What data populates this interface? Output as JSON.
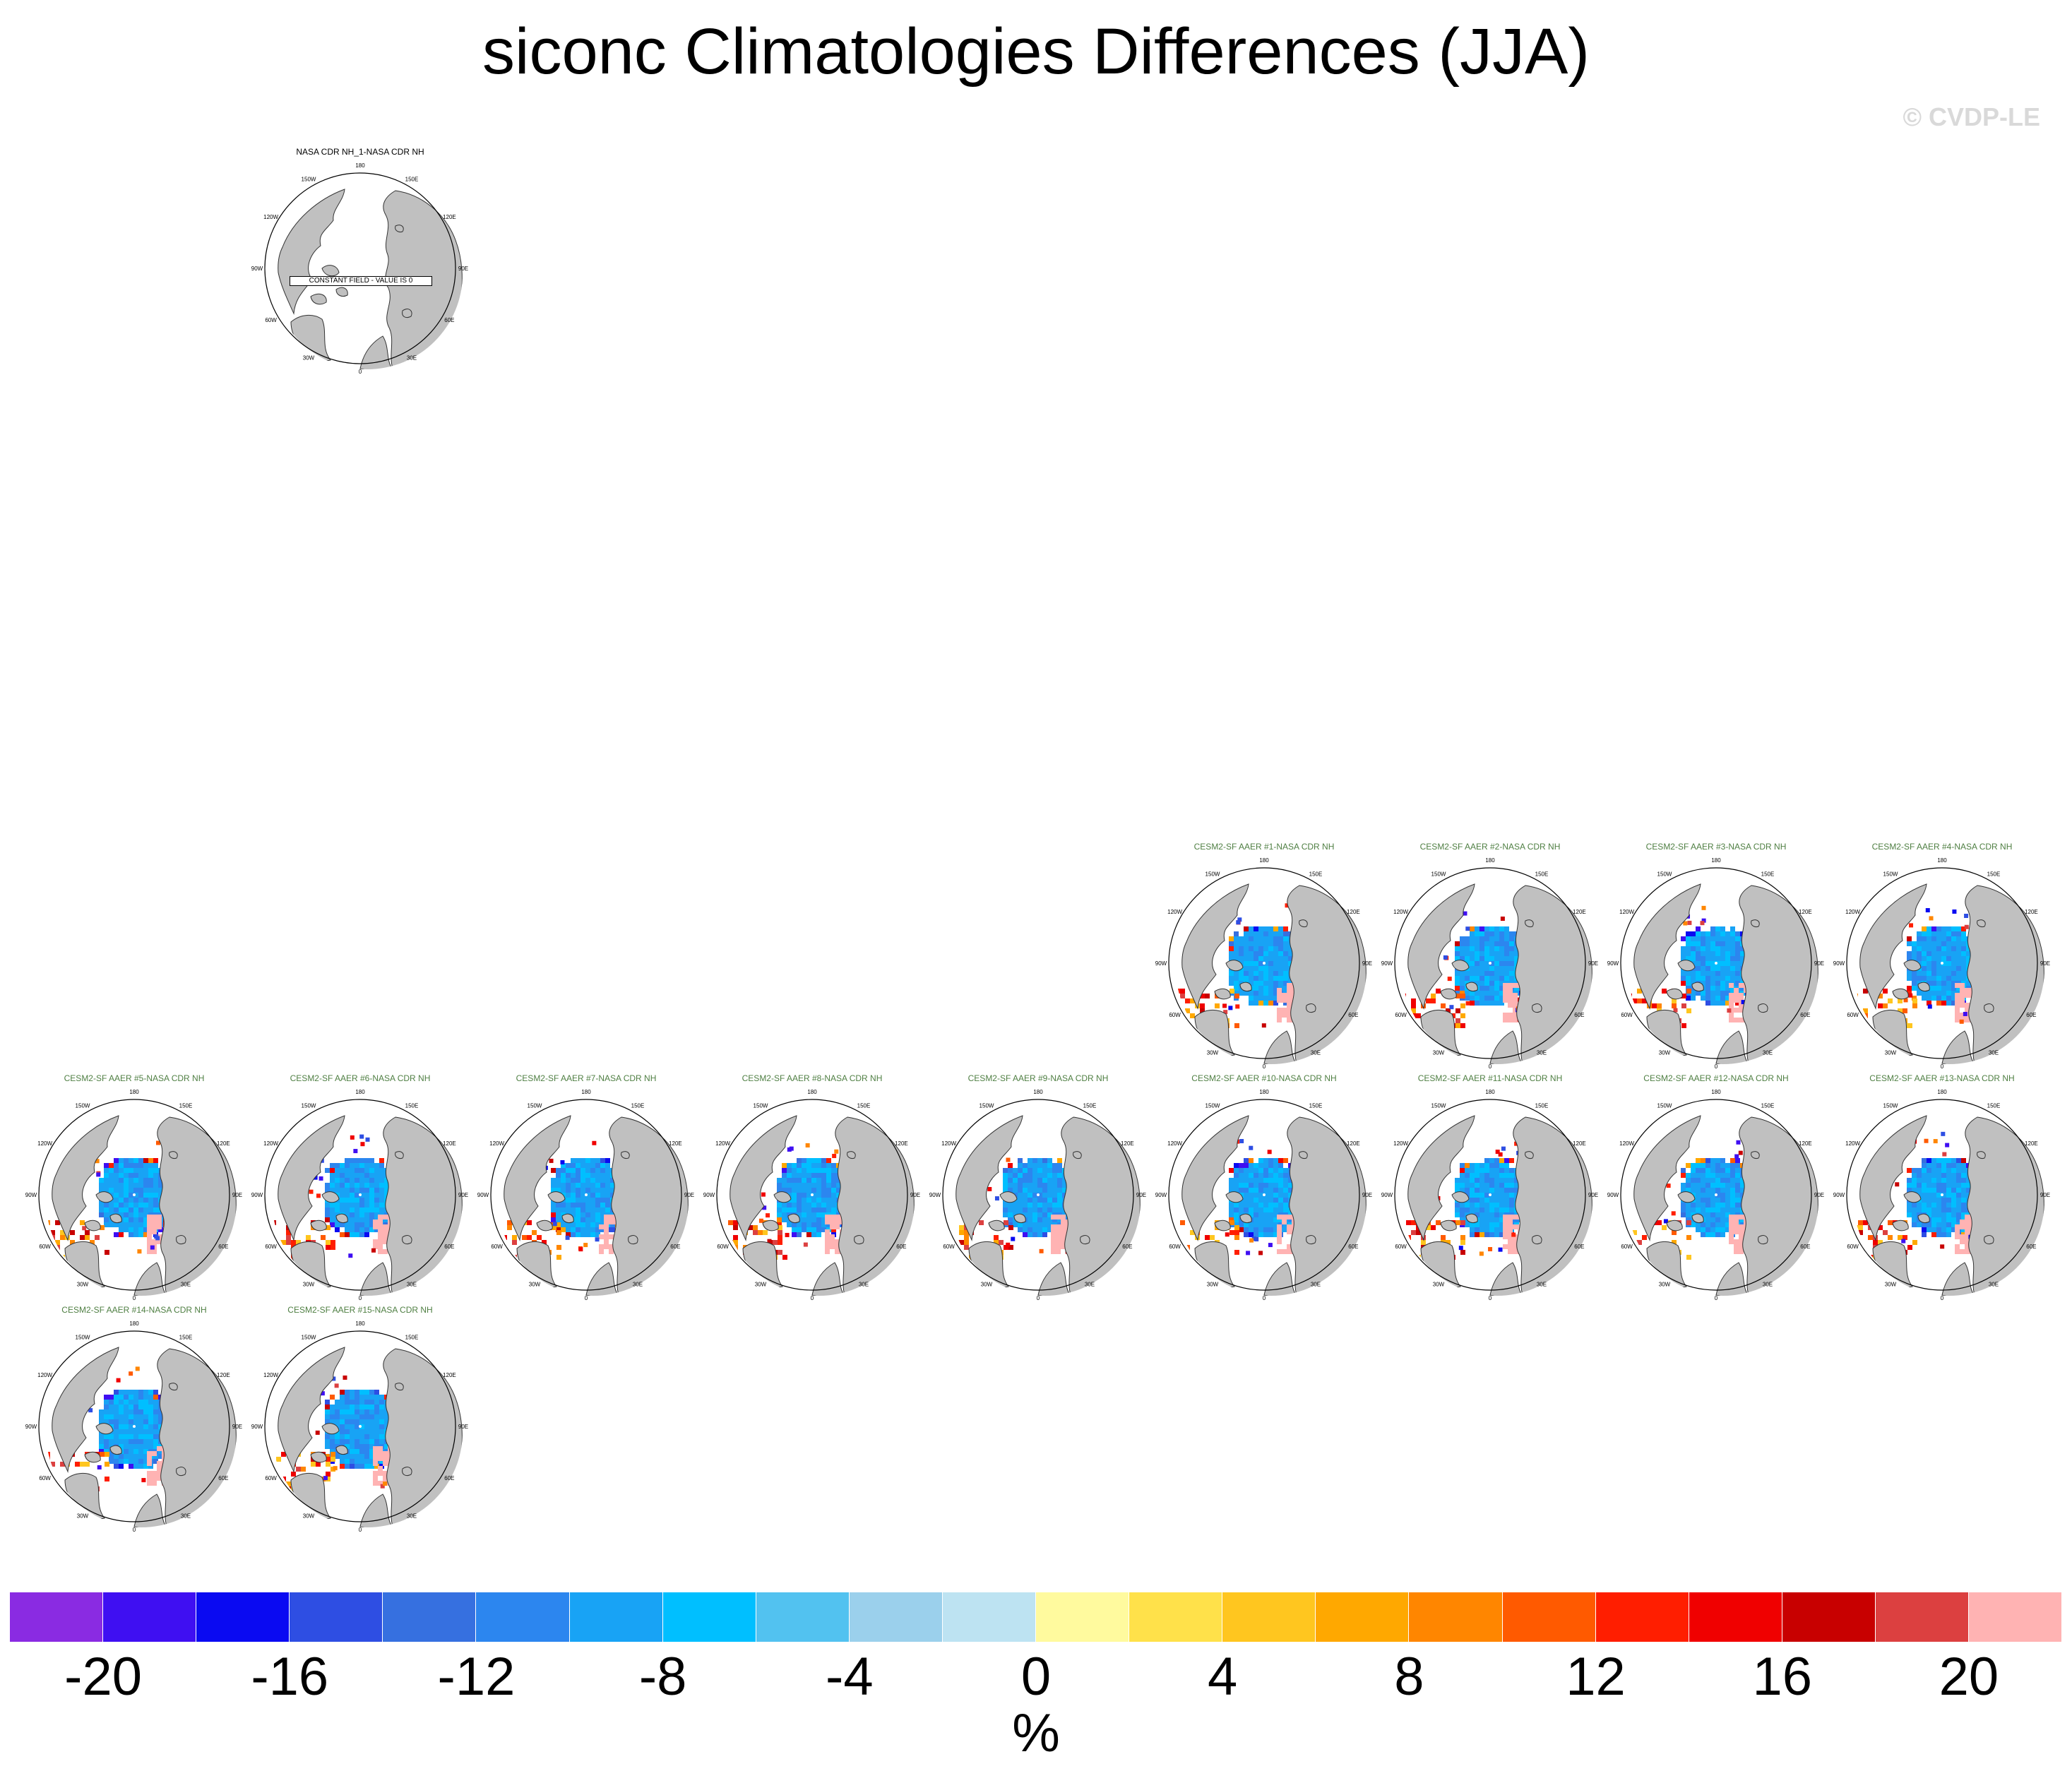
{
  "title": "siconc Climatologies Differences (JJA)",
  "watermark": "© CVDP-LE",
  "colors": {
    "land": "#c0c0c0",
    "coastline": "#333333",
    "model_title": "#4f7f43"
  },
  "lon_labels": [
    "180",
    "150E",
    "120E",
    "90E",
    "60E",
    "30E",
    "0",
    "30W",
    "60W",
    "90W",
    "120W",
    "150W"
  ],
  "panels": [
    {
      "title": "NASA CDR NH_1-NASA CDR NH",
      "kind": "obs",
      "note": "CONSTANT FIELD - VALUE IS 0"
    },
    {
      "title": "CESM2-SF AAER #1-NASA CDR NH",
      "kind": "model"
    },
    {
      "title": "CESM2-SF AAER #2-NASA CDR NH",
      "kind": "model"
    },
    {
      "title": "CESM2-SF AAER #3-NASA CDR NH",
      "kind": "model"
    },
    {
      "title": "CESM2-SF AAER #4-NASA CDR NH",
      "kind": "model"
    },
    {
      "title": "CESM2-SF AAER #5-NASA CDR NH",
      "kind": "model"
    },
    {
      "title": "CESM2-SF AAER #6-NASA CDR NH",
      "kind": "model"
    },
    {
      "title": "CESM2-SF AAER #7-NASA CDR NH",
      "kind": "model"
    },
    {
      "title": "CESM2-SF AAER #8-NASA CDR NH",
      "kind": "model"
    },
    {
      "title": "CESM2-SF AAER #9-NASA CDR NH",
      "kind": "model"
    },
    {
      "title": "CESM2-SF AAER #10-NASA CDR NH",
      "kind": "model"
    },
    {
      "title": "CESM2-SF AAER #11-NASA CDR NH",
      "kind": "model"
    },
    {
      "title": "CESM2-SF AAER #12-NASA CDR NH",
      "kind": "model"
    },
    {
      "title": "CESM2-SF AAER #13-NASA CDR NH",
      "kind": "model"
    },
    {
      "title": "CESM2-SF AAER #14-NASA CDR NH",
      "kind": "model"
    },
    {
      "title": "CESM2-SF AAER #15-NASA CDR NH",
      "kind": "model"
    }
  ],
  "colorbar": {
    "unit": "%",
    "tick_labels": [
      "-20",
      "-16",
      "-12",
      "-8",
      "-4",
      "0",
      "4",
      "8",
      "12",
      "16",
      "20"
    ],
    "boundaries": [
      -22,
      -20,
      -18,
      -16,
      -14,
      -12,
      -10,
      -8,
      -6,
      -4,
      -2,
      0,
      2,
      4,
      6,
      8,
      10,
      12,
      14,
      16,
      18,
      20,
      22
    ],
    "colors": [
      "#8a2be2",
      "#3f0ff2",
      "#0a0af2",
      "#2e4ee3",
      "#3670e0",
      "#2c86ef",
      "#18a3f5",
      "#00bfff",
      "#52c2f0",
      "#9bd0ec",
      "#bde3f2",
      "#fffa9e",
      "#ffe14a",
      "#ffc61f",
      "#ffa800",
      "#ff8600",
      "#ff5a00",
      "#ff1e00",
      "#f00000",
      "#c80000",
      "#dc4040",
      "#ffb3b3"
    ]
  }
}
